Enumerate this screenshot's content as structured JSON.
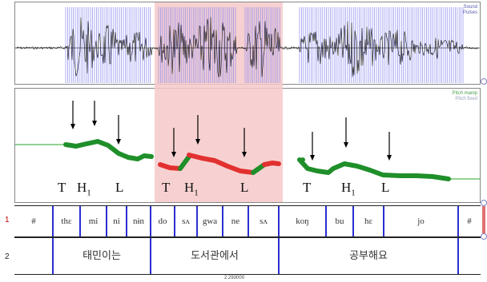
{
  "panels": {
    "waveform_tag_1": "Sound",
    "waveform_tag_2": "Pulses",
    "pitch_tag_1": "Pitch manip",
    "pitch_tag_2": "Pitch fixed"
  },
  "colors": {
    "highlight": "#f6c9c9",
    "pulse": "#8c8cf0",
    "pitch_green": "#1f8f2a",
    "pitch_red": "#e23030",
    "boundary": "#2a2fd0"
  },
  "tones": [
    {
      "letter": "T",
      "sub": ""
    },
    {
      "letter": "H",
      "sub": "1"
    },
    {
      "letter": "L",
      "sub": ""
    },
    {
      "letter": "T",
      "sub": ""
    },
    {
      "letter": "H",
      "sub": "1"
    },
    {
      "letter": "L",
      "sub": ""
    },
    {
      "letter": "T",
      "sub": ""
    },
    {
      "letter": "H",
      "sub": "1"
    },
    {
      "letter": "L",
      "sub": ""
    }
  ],
  "tiers": {
    "tier1_number": "1",
    "tier2_number": "2",
    "syllables": [
      "#",
      "thɛ",
      "mi",
      "ni",
      "nɨn",
      "do",
      "sʌ",
      "gwa",
      "ne",
      "sʌ",
      "koŋ",
      "bu",
      "hɛ",
      "jo",
      "#"
    ],
    "words": [
      "태민이는",
      "도서관에서",
      "공부해요"
    ]
  },
  "time_readout": "2.293000"
}
